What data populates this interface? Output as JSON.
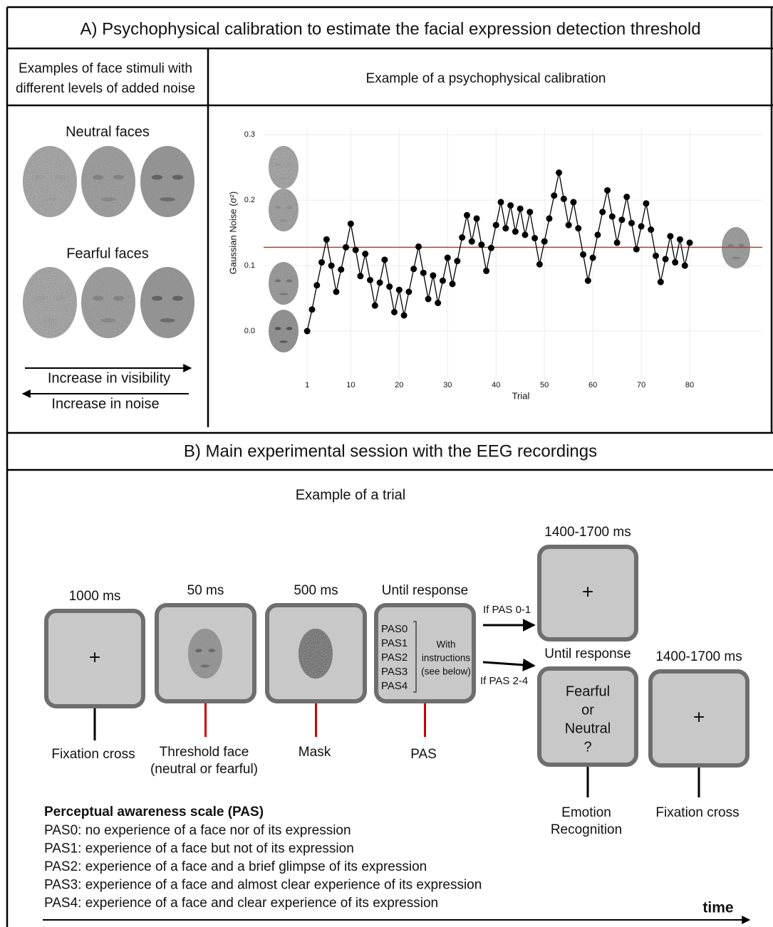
{
  "section_a": {
    "title": "A) Psychophysical calibration to estimate the facial expression detection threshold",
    "stimuli_header": [
      "Examples of face stimuli with",
      "different levels of added noise"
    ],
    "neutral_label": "Neutral faces",
    "fearful_label": "Fearful faces",
    "visibility_arrow": "Increase in visibility",
    "noise_arrow": "Increase in noise",
    "chart_header": "Example of a psychophysical calibration"
  },
  "chart_data": {
    "type": "line",
    "x_label": "Trial",
    "y_label": "Gaussian Noise (σ²)",
    "color": "#000000",
    "x": [
      1,
      2,
      3,
      4,
      5,
      6,
      7,
      8,
      9,
      10,
      11,
      12,
      13,
      14,
      15,
      16,
      17,
      18,
      19,
      20,
      21,
      22,
      23,
      24,
      25,
      26,
      27,
      28,
      29,
      30,
      31,
      32,
      33,
      34,
      35,
      36,
      37,
      38,
      39,
      40,
      41,
      42,
      43,
      44,
      45,
      46,
      47,
      48,
      49,
      50,
      51,
      52,
      53,
      54,
      55,
      56,
      57,
      58,
      59,
      60,
      61,
      62,
      63,
      64,
      65,
      66,
      67,
      68,
      69,
      70,
      71,
      72,
      73,
      74,
      75,
      76,
      77,
      78,
      79,
      80
    ],
    "values": [
      0.0,
      0.033,
      0.07,
      0.105,
      0.14,
      0.1,
      0.06,
      0.094,
      0.128,
      0.164,
      0.124,
      0.084,
      0.118,
      0.078,
      0.039,
      0.074,
      0.109,
      0.068,
      0.029,
      0.063,
      0.024,
      0.06,
      0.095,
      0.129,
      0.089,
      0.049,
      0.085,
      0.043,
      0.077,
      0.112,
      0.072,
      0.107,
      0.143,
      0.177,
      0.137,
      0.172,
      0.132,
      0.092,
      0.127,
      0.162,
      0.197,
      0.157,
      0.192,
      0.152,
      0.187,
      0.147,
      0.182,
      0.142,
      0.102,
      0.137,
      0.172,
      0.207,
      0.242,
      0.202,
      0.162,
      0.197,
      0.157,
      0.117,
      0.077,
      0.112,
      0.147,
      0.182,
      0.215,
      0.175,
      0.135,
      0.17,
      0.205,
      0.165,
      0.125,
      0.16,
      0.195,
      0.155,
      0.115,
      0.075,
      0.11,
      0.145,
      0.105,
      0.14,
      0.1,
      0.135
    ],
    "threshold": 0.128,
    "threshold_color": "#c0392b",
    "xlim": [
      -8,
      95
    ],
    "ylim": [
      -0.075,
      0.31
    ],
    "xticks": [
      1,
      10,
      20,
      30,
      40,
      50,
      60,
      70,
      80
    ],
    "yticks": [
      {
        "value": 0,
        "label": "0.0"
      },
      0.1,
      0.2,
      0.3
    ],
    "grid": true
  },
  "section_b": {
    "title": "B) Main experimental session with the EEG recordings",
    "trial_header": "Example of a trial",
    "steps": [
      {
        "duration": "1000 ms",
        "content": "+",
        "caption": [
          "Fixation cross"
        ]
      },
      {
        "duration": "50 ms",
        "caption": [
          "Threshold face",
          "(neutral or fearful)"
        ]
      },
      {
        "duration": "500 ms",
        "caption": [
          "Mask"
        ]
      },
      {
        "duration": "Until response",
        "pas_items": [
          "PAS0",
          "PAS1",
          "PAS2",
          "PAS3",
          "PAS4"
        ],
        "note": [
          "With",
          "instructions",
          "(see below)"
        ],
        "caption": [
          "PAS"
        ]
      },
      {
        "duration": "1400-1700 ms",
        "content": "+",
        "branch": "If PAS 0-1"
      },
      {
        "duration": "Until response",
        "content": [
          "Fearful",
          "or",
          "Neutral",
          "?"
        ],
        "caption": [
          "Emotion",
          "Recognition"
        ],
        "branch": "If PAS 2-4"
      },
      {
        "duration": "1400-1700 ms",
        "content": "+",
        "caption": [
          "Fixation cross"
        ]
      }
    ],
    "pas_scale": {
      "title": "Perceptual awareness scale (PAS)",
      "items": [
        "PAS0: no experience of a face nor of its expression",
        "PAS1: experience of a face but not of its expression",
        "PAS2: experience of a face and a brief glimpse of its expression",
        "PAS3: experience of a face and almost clear experience of its expression",
        "PAS4: experience of a face and clear experience of its expression"
      ]
    },
    "time_label": "time"
  }
}
